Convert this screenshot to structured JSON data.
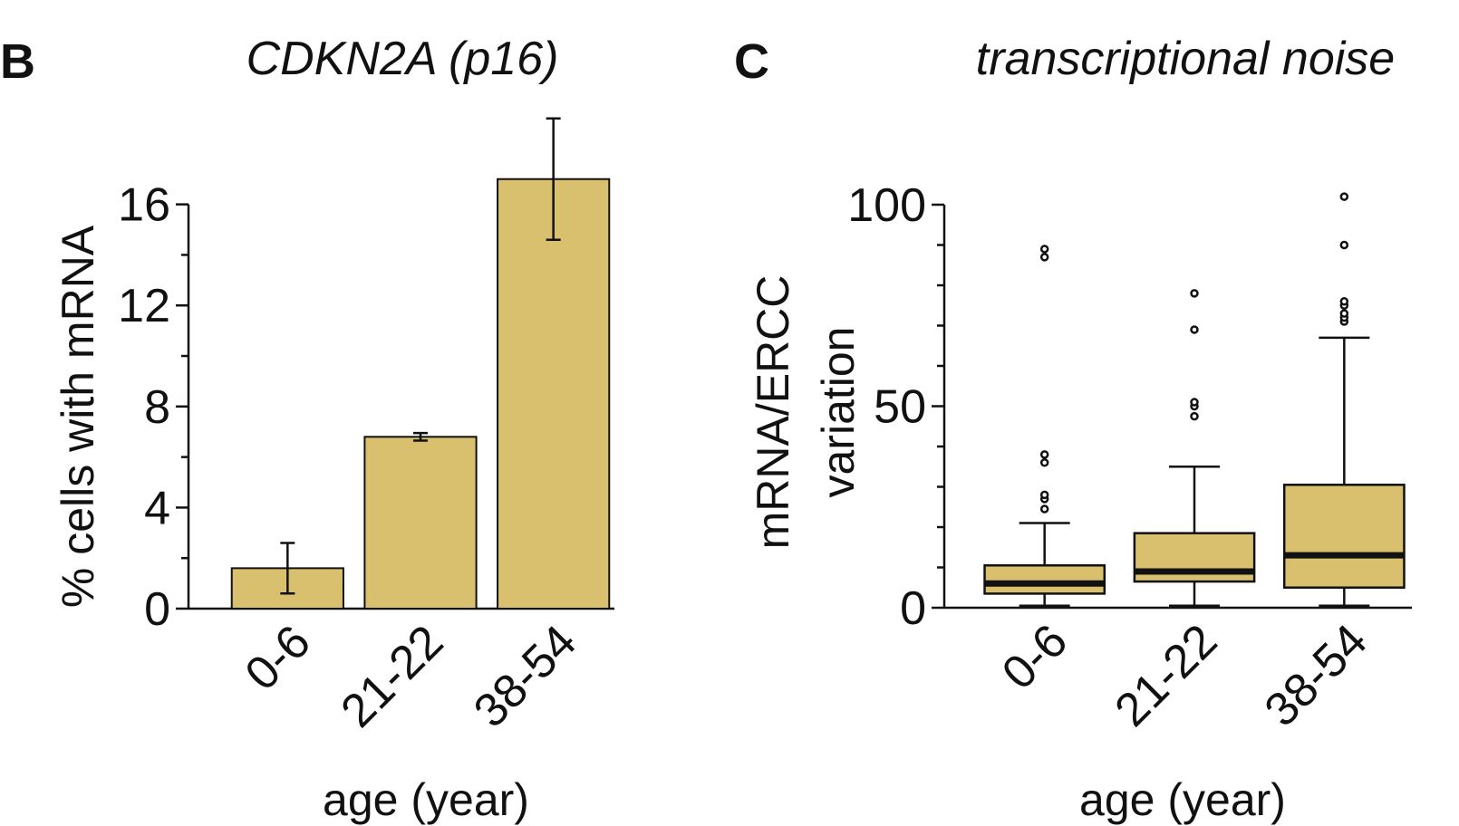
{
  "colors": {
    "fill": "#d8c06f",
    "ink": "#111111"
  },
  "chart_data": [
    {
      "panel": "B",
      "type": "bar",
      "title": "CDKN2A (p16)",
      "xlabel": "age (year)",
      "ylabel": "% cells with mRNA",
      "categories": [
        "0-6",
        "21-22",
        "38-54"
      ],
      "values": [
        1.6,
        6.8,
        17.0
      ],
      "errors": [
        {
          "low": 0.6,
          "high": 2.6
        },
        {
          "low": 6.65,
          "high": 6.95
        },
        {
          "low": 14.6,
          "high": 19.4
        }
      ],
      "ylim": [
        0,
        17
      ],
      "yticks": [
        0,
        4,
        8,
        12,
        16
      ],
      "yticks_labels": [
        "0",
        "4",
        "8",
        "12",
        "16"
      ],
      "grid": false
    },
    {
      "panel": "C",
      "type": "box",
      "title": "transcriptional noise",
      "xlabel": "age (year)",
      "ylabel_lines": [
        "mRNA/ERCC",
        "variation"
      ],
      "categories": [
        "0-6",
        "21-22",
        "38-54"
      ],
      "boxes": [
        {
          "whisker_low": 0.5,
          "q1": 3.5,
          "median": 6,
          "q3": 10.5,
          "whisker_high": 21,
          "outliers": [
            24.5,
            27,
            28,
            36,
            38,
            87,
            89
          ]
        },
        {
          "whisker_low": 0.5,
          "q1": 6.5,
          "median": 9,
          "q3": 18.5,
          "whisker_high": 35,
          "outliers": [
            47.5,
            50,
            51,
            69,
            78
          ]
        },
        {
          "whisker_low": 0.5,
          "q1": 5,
          "median": 13,
          "q3": 30.5,
          "whisker_high": 67,
          "outliers": [
            71,
            72,
            73,
            75,
            76,
            90,
            102
          ]
        }
      ],
      "ylim": [
        0,
        100
      ],
      "yticks": [
        0,
        50,
        100
      ],
      "yticks_labels": [
        "0",
        "50",
        "100"
      ],
      "grid": false
    }
  ]
}
